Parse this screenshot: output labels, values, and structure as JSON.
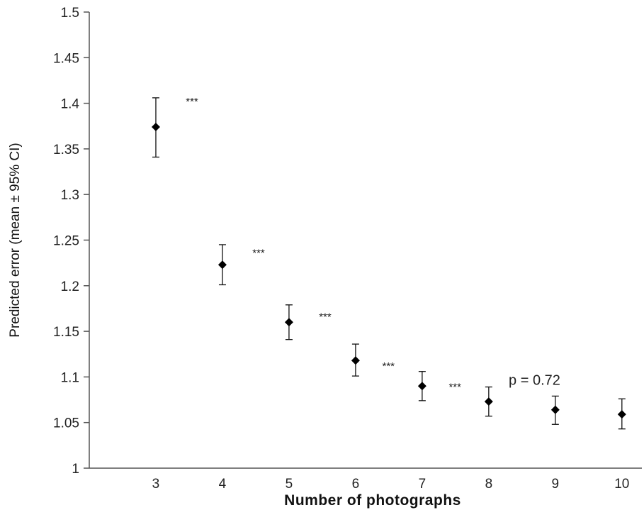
{
  "chart_data": {
    "type": "scatter",
    "title": "",
    "xlabel": "Number of photographs",
    "ylabel": "Predicted error (mean ± 95% CI)",
    "x_ticks": [
      "3",
      "4",
      "5",
      "6",
      "7",
      "8",
      "9",
      "10"
    ],
    "y_ticks": [
      "1",
      "1.05",
      "1.1",
      "1.15",
      "1.2",
      "1.25",
      "1.3",
      "1.35",
      "1.4",
      "1.45",
      "1.5"
    ],
    "xlim": [
      2,
      10.3
    ],
    "ylim": [
      1,
      1.5
    ],
    "grid": false,
    "points": [
      {
        "x": 3,
        "y": 1.374,
        "ci_low": 1.341,
        "ci_high": 1.406
      },
      {
        "x": 4,
        "y": 1.223,
        "ci_low": 1.201,
        "ci_high": 1.245
      },
      {
        "x": 5,
        "y": 1.16,
        "ci_low": 1.141,
        "ci_high": 1.179
      },
      {
        "x": 6,
        "y": 1.118,
        "ci_low": 1.101,
        "ci_high": 1.136
      },
      {
        "x": 7,
        "y": 1.09,
        "ci_low": 1.074,
        "ci_high": 1.106
      },
      {
        "x": 8,
        "y": 1.073,
        "ci_low": 1.057,
        "ci_high": 1.089
      },
      {
        "x": 9,
        "y": 1.064,
        "ci_low": 1.048,
        "ci_high": 1.079
      },
      {
        "x": 10,
        "y": 1.059,
        "ci_low": 1.043,
        "ci_high": 1.076
      }
    ],
    "annotations": [
      {
        "text": "***",
        "x": 3.45,
        "y": 1.402
      },
      {
        "text": "***",
        "x": 4.45,
        "y": 1.236
      },
      {
        "text": "***",
        "x": 5.45,
        "y": 1.166
      },
      {
        "text": "***",
        "x": 6.4,
        "y": 1.112
      },
      {
        "text": "***",
        "x": 7.4,
        "y": 1.089
      },
      {
        "text": "p = 0.72",
        "x": 8.3,
        "y": 1.097
      }
    ]
  }
}
